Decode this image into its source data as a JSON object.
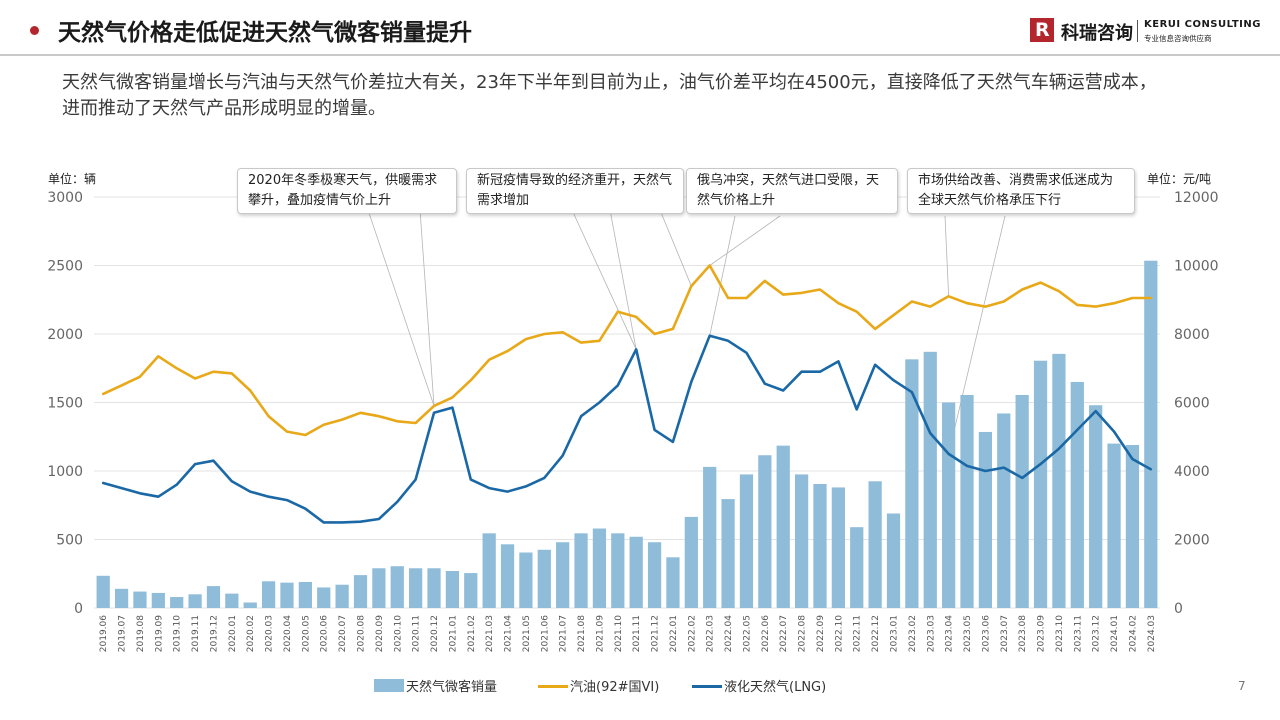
{
  "header": {
    "title": "天然气价格走低促进天然气微客销量提升",
    "logo_cn": "科瑞咨询",
    "logo_en": "KERUI CONSULTING",
    "logo_tagline": "专业信息咨询供应商",
    "logo_mark": "R",
    "accent_color": "#b3262d"
  },
  "description": "天然气微客销量增长与汽油与天然气价差拉大有关，23年下半年到目前为止，油气价差平均在4500元，直接降低了天然气车辆运营成本，进而推动了天然气产品形成明显的增量。",
  "page_number": "7",
  "chart_data": {
    "type": "bar",
    "left_unit": "单位：辆",
    "right_unit": "单位：元/吨",
    "left_axis": {
      "min": 0,
      "max": 3000,
      "ticks": [
        0,
        500,
        1000,
        1500,
        2000,
        2500,
        3000
      ]
    },
    "right_axis": {
      "min": 0,
      "max": 12000,
      "ticks": [
        0,
        2000,
        4000,
        6000,
        8000,
        10000,
        12000
      ]
    },
    "categories": [
      "2019.06",
      "2019.07",
      "2019.08",
      "2019.09",
      "2019.10",
      "2019.11",
      "2019.12",
      "2020.01",
      "2020.02",
      "2020.03",
      "2020.04",
      "2020.05",
      "2020.06",
      "2020.07",
      "2020.08",
      "2020.09",
      "2020.10",
      "2020.11",
      "2020.12",
      "2021.01",
      "2021.02",
      "2021.03",
      "2021.04",
      "2021.05",
      "2021.06",
      "2021.07",
      "2021.08",
      "2021.09",
      "2021.10",
      "2021.11",
      "2021.12",
      "2022.01",
      "2022.02",
      "2022.03",
      "2022.04",
      "2022.05",
      "2022.06",
      "2022.07",
      "2022.08",
      "2022.09",
      "2022.10",
      "2022.11",
      "2022.12",
      "2023.01",
      "2023.02",
      "2023.03",
      "2023.04",
      "2023.05",
      "2023.06",
      "2023.07",
      "2023.08",
      "2023.09",
      "2023.10",
      "2023.11",
      "2023.12",
      "2024.01",
      "2024.02",
      "2024.03"
    ],
    "series": [
      {
        "name": "天然气微客销量",
        "kind": "bar",
        "axis": "left",
        "color": "#8fbcd9",
        "values": [
          235,
          140,
          120,
          110,
          80,
          100,
          160,
          105,
          40,
          195,
          185,
          190,
          150,
          170,
          240,
          290,
          305,
          290,
          290,
          270,
          255,
          545,
          465,
          405,
          425,
          480,
          545,
          580,
          545,
          520,
          480,
          370,
          665,
          1030,
          795,
          975,
          1115,
          1185,
          975,
          905,
          880,
          590,
          925,
          690,
          1815,
          1870,
          1500,
          1555,
          1285,
          1420,
          1555,
          1805,
          1855,
          1650,
          1480,
          1200,
          1190,
          2535
        ]
      },
      {
        "name": "汽油(92#国VI)",
        "kind": "line",
        "axis": "right",
        "color": "#e8a818",
        "values": [
          6250,
          6500,
          6750,
          7350,
          7000,
          6700,
          6900,
          6850,
          6350,
          5600,
          5150,
          5050,
          5350,
          5500,
          5700,
          5600,
          5450,
          5400,
          5900,
          6150,
          6650,
          7250,
          7500,
          7850,
          8000,
          8050,
          7750,
          7800,
          8650,
          8500,
          8000,
          8150,
          9400,
          10000,
          9050,
          9050,
          9550,
          9150,
          9200,
          9300,
          8900,
          8650,
          8150,
          8550,
          8950,
          8800,
          9100,
          8900,
          8800,
          8950,
          9300,
          9500,
          9250,
          8850,
          8800,
          8900,
          9050,
          9050
        ]
      },
      {
        "name": "液化天然气(LNG)",
        "kind": "line",
        "axis": "right",
        "color": "#1a68a6",
        "values": [
          3650,
          3500,
          3350,
          3250,
          3600,
          4200,
          4300,
          3700,
          3400,
          3250,
          3150,
          2900,
          2500,
          2500,
          2520,
          2600,
          3100,
          3750,
          5700,
          5850,
          3750,
          3500,
          3400,
          3550,
          3800,
          4450,
          5600,
          6000,
          6500,
          7550,
          5200,
          4850,
          6600,
          7950,
          7800,
          7450,
          6550,
          6350,
          6900,
          6900,
          7200,
          5800,
          7100,
          6650,
          6300,
          5100,
          4500,
          4150,
          4000,
          4100,
          3800,
          4200,
          4650,
          5200,
          5750,
          5150,
          4350,
          4050
        ]
      }
    ],
    "annotations": [
      {
        "text": "2020年冬季极寒天气，供暖需求攀升，叠加疫情气价上升"
      },
      {
        "text": "新冠疫情导致的经济重开，天然气需求增加"
      },
      {
        "text": "俄乌冲突，天然气进口受限，天然气价格上升"
      },
      {
        "text": "市场供给改善、消费需求低迷成为全球天然气价格承压下行"
      }
    ],
    "grid": true,
    "legend_position": "bottom"
  }
}
